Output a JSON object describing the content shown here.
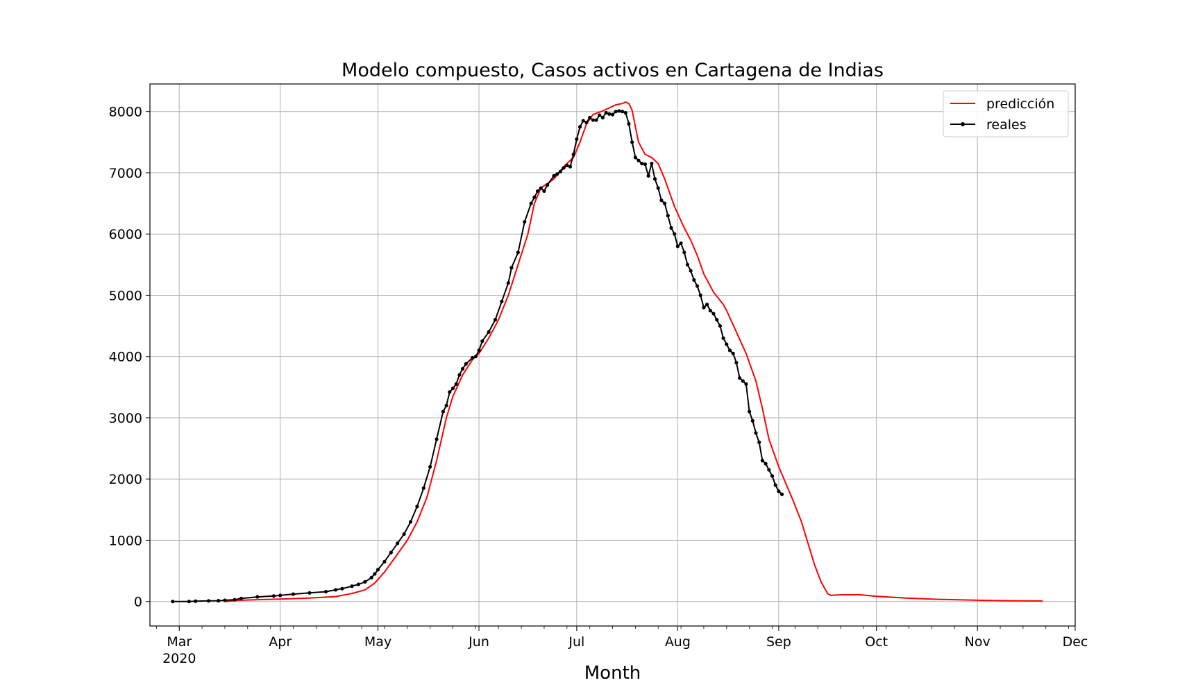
{
  "chart_data": {
    "type": "line",
    "title": "Modelo compuesto, Casos activos en Cartagena de Indias",
    "xlabel": "Month",
    "ylabel": "",
    "x_axis_type": "date",
    "xlim": [
      "2020-02-21",
      "2020-12-01"
    ],
    "ylim": [
      -400,
      8450
    ],
    "grid": true,
    "legend_position": "top-right",
    "x_ticks": [
      {
        "date": "2020-03-01",
        "label": "Mar",
        "sublabel": "2020"
      },
      {
        "date": "2020-04-01",
        "label": "Apr"
      },
      {
        "date": "2020-05-01",
        "label": "May"
      },
      {
        "date": "2020-06-01",
        "label": "Jun"
      },
      {
        "date": "2020-07-01",
        "label": "Jul"
      },
      {
        "date": "2020-08-01",
        "label": "Aug"
      },
      {
        "date": "2020-09-01",
        "label": "Sep"
      },
      {
        "date": "2020-10-01",
        "label": "Oct"
      },
      {
        "date": "2020-11-01",
        "label": "Nov"
      },
      {
        "date": "2020-12-01",
        "label": "Dec"
      }
    ],
    "y_ticks": [
      0,
      1000,
      2000,
      3000,
      4000,
      5000,
      6000,
      7000,
      8000
    ],
    "series": [
      {
        "name": "predicción",
        "color": "#ff0000",
        "marker": "none",
        "points": [
          [
            "2020-03-15",
            0
          ],
          [
            "2020-03-20",
            20
          ],
          [
            "2020-03-25",
            30
          ],
          [
            "2020-04-01",
            40
          ],
          [
            "2020-04-10",
            55
          ],
          [
            "2020-04-18",
            80
          ],
          [
            "2020-04-23",
            130
          ],
          [
            "2020-04-27",
            190
          ],
          [
            "2020-04-30",
            300
          ],
          [
            "2020-05-03",
            480
          ],
          [
            "2020-05-06",
            700
          ],
          [
            "2020-05-10",
            1000
          ],
          [
            "2020-05-13",
            1300
          ],
          [
            "2020-05-16",
            1700
          ],
          [
            "2020-05-19",
            2300
          ],
          [
            "2020-05-22",
            3000
          ],
          [
            "2020-05-24",
            3350
          ],
          [
            "2020-05-27",
            3700
          ],
          [
            "2020-05-30",
            3950
          ],
          [
            "2020-06-01",
            4050
          ],
          [
            "2020-06-04",
            4300
          ],
          [
            "2020-06-07",
            4600
          ],
          [
            "2020-06-10",
            5000
          ],
          [
            "2020-06-13",
            5500
          ],
          [
            "2020-06-16",
            6000
          ],
          [
            "2020-06-18",
            6500
          ],
          [
            "2020-06-20",
            6750
          ],
          [
            "2020-06-24",
            6900
          ],
          [
            "2020-06-27",
            7100
          ],
          [
            "2020-06-30",
            7250
          ],
          [
            "2020-07-02",
            7500
          ],
          [
            "2020-07-04",
            7800
          ],
          [
            "2020-07-06",
            7950
          ],
          [
            "2020-07-09",
            8010
          ],
          [
            "2020-07-13",
            8110
          ],
          [
            "2020-07-15",
            8130
          ],
          [
            "2020-07-16",
            8155
          ],
          [
            "2020-07-17",
            8130
          ],
          [
            "2020-07-18",
            8020
          ],
          [
            "2020-07-19",
            7750
          ],
          [
            "2020-07-20",
            7500
          ],
          [
            "2020-07-22",
            7300
          ],
          [
            "2020-07-24",
            7250
          ],
          [
            "2020-07-26",
            7150
          ],
          [
            "2020-07-28",
            6900
          ],
          [
            "2020-07-31",
            6450
          ],
          [
            "2020-08-03",
            6100
          ],
          [
            "2020-08-05",
            5900
          ],
          [
            "2020-08-07",
            5650
          ],
          [
            "2020-08-09",
            5350
          ],
          [
            "2020-08-12",
            5050
          ],
          [
            "2020-08-15",
            4850
          ],
          [
            "2020-08-16",
            4750
          ],
          [
            "2020-08-19",
            4400
          ],
          [
            "2020-08-22",
            4050
          ],
          [
            "2020-08-25",
            3600
          ],
          [
            "2020-08-27",
            3150
          ],
          [
            "2020-08-29",
            2650
          ],
          [
            "2020-09-01",
            2200
          ],
          [
            "2020-09-03",
            1950
          ],
          [
            "2020-09-05",
            1700
          ],
          [
            "2020-09-08",
            1300
          ],
          [
            "2020-09-10",
            950
          ],
          [
            "2020-09-12",
            600
          ],
          [
            "2020-09-14",
            320
          ],
          [
            "2020-09-16",
            130
          ],
          [
            "2020-09-17",
            100
          ],
          [
            "2020-09-20",
            110
          ],
          [
            "2020-09-26",
            110
          ],
          [
            "2020-10-01",
            85
          ],
          [
            "2020-10-10",
            55
          ],
          [
            "2020-10-20",
            35
          ],
          [
            "2020-11-01",
            20
          ],
          [
            "2020-11-10",
            12
          ],
          [
            "2020-11-21",
            8
          ]
        ]
      },
      {
        "name": "reales",
        "color": "#000000",
        "marker": "dot",
        "points": [
          [
            "2020-02-28",
            0
          ],
          [
            "2020-03-04",
            0
          ],
          [
            "2020-03-06",
            5
          ],
          [
            "2020-03-10",
            10
          ],
          [
            "2020-03-13",
            12
          ],
          [
            "2020-03-15",
            20
          ],
          [
            "2020-03-18",
            30
          ],
          [
            "2020-03-20",
            50
          ],
          [
            "2020-03-25",
            75
          ],
          [
            "2020-03-30",
            90
          ],
          [
            "2020-04-01",
            100
          ],
          [
            "2020-04-05",
            120
          ],
          [
            "2020-04-10",
            140
          ],
          [
            "2020-04-15",
            160
          ],
          [
            "2020-04-18",
            190
          ],
          [
            "2020-04-20",
            210
          ],
          [
            "2020-04-23",
            250
          ],
          [
            "2020-04-25",
            280
          ],
          [
            "2020-04-27",
            320
          ],
          [
            "2020-04-29",
            390
          ],
          [
            "2020-04-30",
            450
          ],
          [
            "2020-05-01",
            520
          ],
          [
            "2020-05-03",
            650
          ],
          [
            "2020-05-05",
            800
          ],
          [
            "2020-05-07",
            950
          ],
          [
            "2020-05-09",
            1100
          ],
          [
            "2020-05-11",
            1300
          ],
          [
            "2020-05-13",
            1550
          ],
          [
            "2020-05-15",
            1850
          ],
          [
            "2020-05-17",
            2200
          ],
          [
            "2020-05-19",
            2650
          ],
          [
            "2020-05-21",
            3100
          ],
          [
            "2020-05-22",
            3200
          ],
          [
            "2020-05-23",
            3420
          ],
          [
            "2020-05-24",
            3480
          ],
          [
            "2020-05-25",
            3550
          ],
          [
            "2020-05-26",
            3700
          ],
          [
            "2020-05-27",
            3800
          ],
          [
            "2020-05-28",
            3880
          ],
          [
            "2020-05-30",
            3980
          ],
          [
            "2020-05-31",
            4000
          ],
          [
            "2020-06-01",
            4100
          ],
          [
            "2020-06-02",
            4250
          ],
          [
            "2020-06-04",
            4400
          ],
          [
            "2020-06-06",
            4600
          ],
          [
            "2020-06-08",
            4900
          ],
          [
            "2020-06-10",
            5200
          ],
          [
            "2020-06-11",
            5450
          ],
          [
            "2020-06-13",
            5700
          ],
          [
            "2020-06-15",
            6200
          ],
          [
            "2020-06-17",
            6500
          ],
          [
            "2020-06-18",
            6600
          ],
          [
            "2020-06-19",
            6700
          ],
          [
            "2020-06-20",
            6750
          ],
          [
            "2020-06-21",
            6700
          ],
          [
            "2020-06-22",
            6800
          ],
          [
            "2020-06-24",
            6950
          ],
          [
            "2020-06-25",
            6980
          ],
          [
            "2020-06-26",
            7020
          ],
          [
            "2020-06-27",
            7080
          ],
          [
            "2020-06-28",
            7120
          ],
          [
            "2020-06-29",
            7100
          ],
          [
            "2020-06-30",
            7300
          ],
          [
            "2020-07-01",
            7550
          ],
          [
            "2020-07-02",
            7750
          ],
          [
            "2020-07-03",
            7850
          ],
          [
            "2020-07-04",
            7820
          ],
          [
            "2020-07-05",
            7900
          ],
          [
            "2020-07-06",
            7860
          ],
          [
            "2020-07-07",
            7860
          ],
          [
            "2020-07-08",
            7940
          ],
          [
            "2020-07-09",
            7900
          ],
          [
            "2020-07-10",
            7980
          ],
          [
            "2020-07-11",
            7960
          ],
          [
            "2020-07-12",
            7950
          ],
          [
            "2020-07-13",
            8000
          ],
          [
            "2020-07-14",
            8010
          ],
          [
            "2020-07-15",
            8000
          ],
          [
            "2020-07-16",
            7980
          ],
          [
            "2020-07-17",
            7800
          ],
          [
            "2020-07-18",
            7500
          ],
          [
            "2020-07-19",
            7250
          ],
          [
            "2020-07-20",
            7200
          ],
          [
            "2020-07-21",
            7150
          ],
          [
            "2020-07-22",
            7140
          ],
          [
            "2020-07-23",
            6950
          ],
          [
            "2020-07-24",
            7150
          ],
          [
            "2020-07-25",
            6900
          ],
          [
            "2020-07-26",
            6750
          ],
          [
            "2020-07-27",
            6550
          ],
          [
            "2020-07-28",
            6500
          ],
          [
            "2020-07-29",
            6300
          ],
          [
            "2020-07-30",
            6100
          ],
          [
            "2020-07-31",
            6000
          ],
          [
            "2020-08-01",
            5800
          ],
          [
            "2020-08-02",
            5850
          ],
          [
            "2020-08-03",
            5700
          ],
          [
            "2020-08-04",
            5500
          ],
          [
            "2020-08-05",
            5400
          ],
          [
            "2020-08-06",
            5250
          ],
          [
            "2020-08-07",
            5150
          ],
          [
            "2020-08-08",
            5000
          ],
          [
            "2020-08-09",
            4800
          ],
          [
            "2020-08-10",
            4850
          ],
          [
            "2020-08-11",
            4750
          ],
          [
            "2020-08-12",
            4700
          ],
          [
            "2020-08-13",
            4600
          ],
          [
            "2020-08-14",
            4500
          ],
          [
            "2020-08-15",
            4300
          ],
          [
            "2020-08-16",
            4200
          ],
          [
            "2020-08-17",
            4100
          ],
          [
            "2020-08-18",
            4050
          ],
          [
            "2020-08-19",
            3900
          ],
          [
            "2020-08-20",
            3650
          ],
          [
            "2020-08-21",
            3600
          ],
          [
            "2020-08-22",
            3550
          ],
          [
            "2020-08-23",
            3100
          ],
          [
            "2020-08-24",
            2950
          ],
          [
            "2020-08-25",
            2750
          ],
          [
            "2020-08-26",
            2600
          ],
          [
            "2020-08-27",
            2300
          ],
          [
            "2020-08-28",
            2250
          ],
          [
            "2020-08-29",
            2150
          ],
          [
            "2020-08-30",
            2050
          ],
          [
            "2020-08-31",
            1900
          ],
          [
            "2020-09-01",
            1800
          ],
          [
            "2020-09-02",
            1750
          ]
        ]
      }
    ]
  }
}
